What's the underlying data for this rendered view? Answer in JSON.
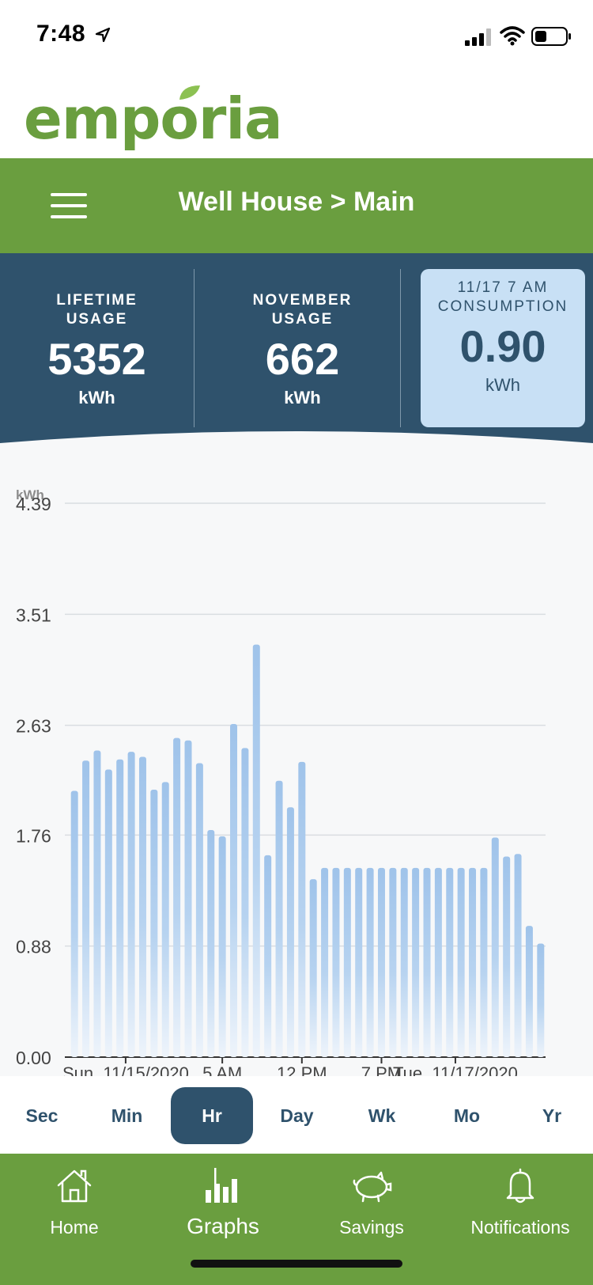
{
  "status": {
    "time": "7:48"
  },
  "logo": {
    "text": "emporia"
  },
  "header": {
    "title": "Well House > Main"
  },
  "stats": [
    {
      "label_line1": "LIFETIME",
      "label_line2": "USAGE",
      "value": "5352",
      "unit": "kWh"
    },
    {
      "label_line1": "NOVEMBER",
      "label_line2": "USAGE",
      "value": "662",
      "unit": "kWh"
    },
    {
      "label_line1": "11/17 7 AM",
      "label_line2": "CONSUMPTION",
      "value": "0.90",
      "unit": "kWh"
    }
  ],
  "chart_data": {
    "type": "bar",
    "ylabel": "kWh",
    "ylim": [
      0,
      4.39
    ],
    "yticks": [
      "4.39",
      "3.51",
      "2.63",
      "1.76",
      "0.88",
      "0.00"
    ],
    "ytick_values": [
      4.39,
      3.51,
      2.63,
      1.76,
      0.88,
      0.0
    ],
    "xtick_labels": [
      "Sun, 11/15/2020",
      "5 AM",
      "12 PM",
      "7 PM",
      "Tue, 11/17/2020"
    ],
    "xtick_indices": [
      4.5,
      13,
      20,
      27,
      33.5
    ],
    "grid": true,
    "values": [
      2.11,
      2.35,
      2.43,
      2.28,
      2.36,
      2.42,
      2.38,
      2.12,
      2.18,
      2.53,
      2.51,
      2.33,
      1.8,
      1.75,
      2.64,
      2.45,
      3.27,
      1.6,
      2.19,
      1.98,
      2.34,
      1.41,
      1.5,
      1.5,
      1.5,
      1.5,
      1.5,
      1.5,
      1.5,
      1.5,
      1.5,
      1.5,
      1.5,
      1.5,
      1.5,
      1.5,
      1.5,
      1.74,
      1.59,
      1.61,
      1.04,
      0.9
    ],
    "bar_color": "#9fc3ea"
  },
  "range": [
    "Sec",
    "Min",
    "Hr",
    "Day",
    "Wk",
    "Mo",
    "Yr"
  ],
  "range_active": "Hr",
  "nav": [
    {
      "label": "Home",
      "icon": "home-icon"
    },
    {
      "label": "Graphs",
      "icon": "graphs-icon"
    },
    {
      "label": "Savings",
      "icon": "piggy-bank-icon"
    },
    {
      "label": "Notifications",
      "icon": "bell-icon"
    }
  ],
  "colors": {
    "green": "#6a9e3f",
    "navy": "#2f526c",
    "highlight": "#c8e0f5",
    "bar": "#9fc3ea"
  }
}
